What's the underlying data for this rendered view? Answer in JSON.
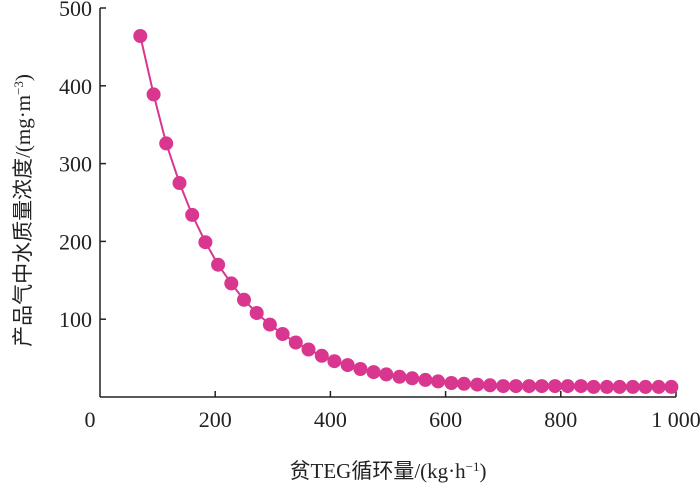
{
  "chart_data": {
    "type": "line",
    "xlabel_main": "贫TEG循环量/(kg·h",
    "xlabel_sup": "−1",
    "xlabel_end": ")",
    "ylabel_main": "产品气中水质量浓度/(mg·m",
    "ylabel_sup": "−3",
    "ylabel_end": ")",
    "xlim": [
      0,
      1000
    ],
    "ylim": [
      0,
      500
    ],
    "x_ticks": [
      0,
      200,
      400,
      600,
      800,
      1000
    ],
    "x_tick_labels": [
      "0",
      "200",
      "400",
      "600",
      "800",
      "1 000"
    ],
    "y_ticks": [
      100,
      200,
      300,
      400,
      500
    ],
    "y_tick_labels": [
      "100",
      "200",
      "300",
      "400",
      "500"
    ],
    "grid": false,
    "color": "#d9368f",
    "series": [
      {
        "x": [
          70,
          93,
          115,
          138,
          160,
          183,
          205,
          228,
          250,
          272,
          295,
          317,
          340,
          362,
          385,
          407,
          430,
          452,
          475,
          497,
          520,
          542,
          565,
          587,
          610,
          632,
          655,
          677,
          700,
          722,
          745,
          767,
          790,
          812,
          835,
          857,
          880,
          902,
          925,
          947,
          970,
          992
        ],
        "y": [
          464,
          389,
          326,
          275,
          234,
          199,
          170,
          146,
          125,
          108,
          93,
          81,
          70,
          61,
          53,
          46,
          41,
          36,
          32,
          29,
          26,
          24,
          22,
          20,
          18,
          17,
          16,
          15,
          14,
          14,
          14,
          14,
          14,
          14,
          14,
          13,
          13,
          13,
          13,
          13,
          13,
          13
        ]
      }
    ]
  }
}
